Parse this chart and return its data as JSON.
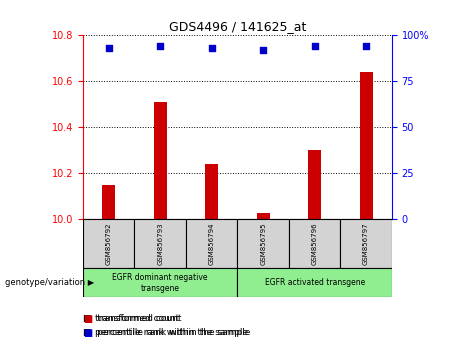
{
  "title": "GDS4496 / 141625_at",
  "samples": [
    "GSM856792",
    "GSM856793",
    "GSM856794",
    "GSM856795",
    "GSM856796",
    "GSM856797"
  ],
  "bar_values": [
    10.15,
    10.51,
    10.24,
    10.03,
    10.3,
    10.64
  ],
  "scatter_values": [
    93,
    94,
    93,
    92,
    94,
    94
  ],
  "ylim_left": [
    10,
    10.8
  ],
  "ylim_right": [
    0,
    100
  ],
  "yticks_left": [
    10,
    10.2,
    10.4,
    10.6,
    10.8
  ],
  "yticks_right": [
    0,
    25,
    50,
    75,
    100
  ],
  "ytick_labels_right": [
    "0",
    "25",
    "50",
    "75",
    "100%"
  ],
  "bar_color": "#cc0000",
  "scatter_color": "#0000cc",
  "group1_label": "EGFR dominant negative\ntransgene",
  "group2_label": "EGFR activated transgene",
  "group1_color": "#90ee90",
  "group2_color": "#90ee90",
  "legend_bar_label": "transformed count",
  "legend_scatter_label": "percentile rank within the sample",
  "genotype_label": "genotype/variation"
}
